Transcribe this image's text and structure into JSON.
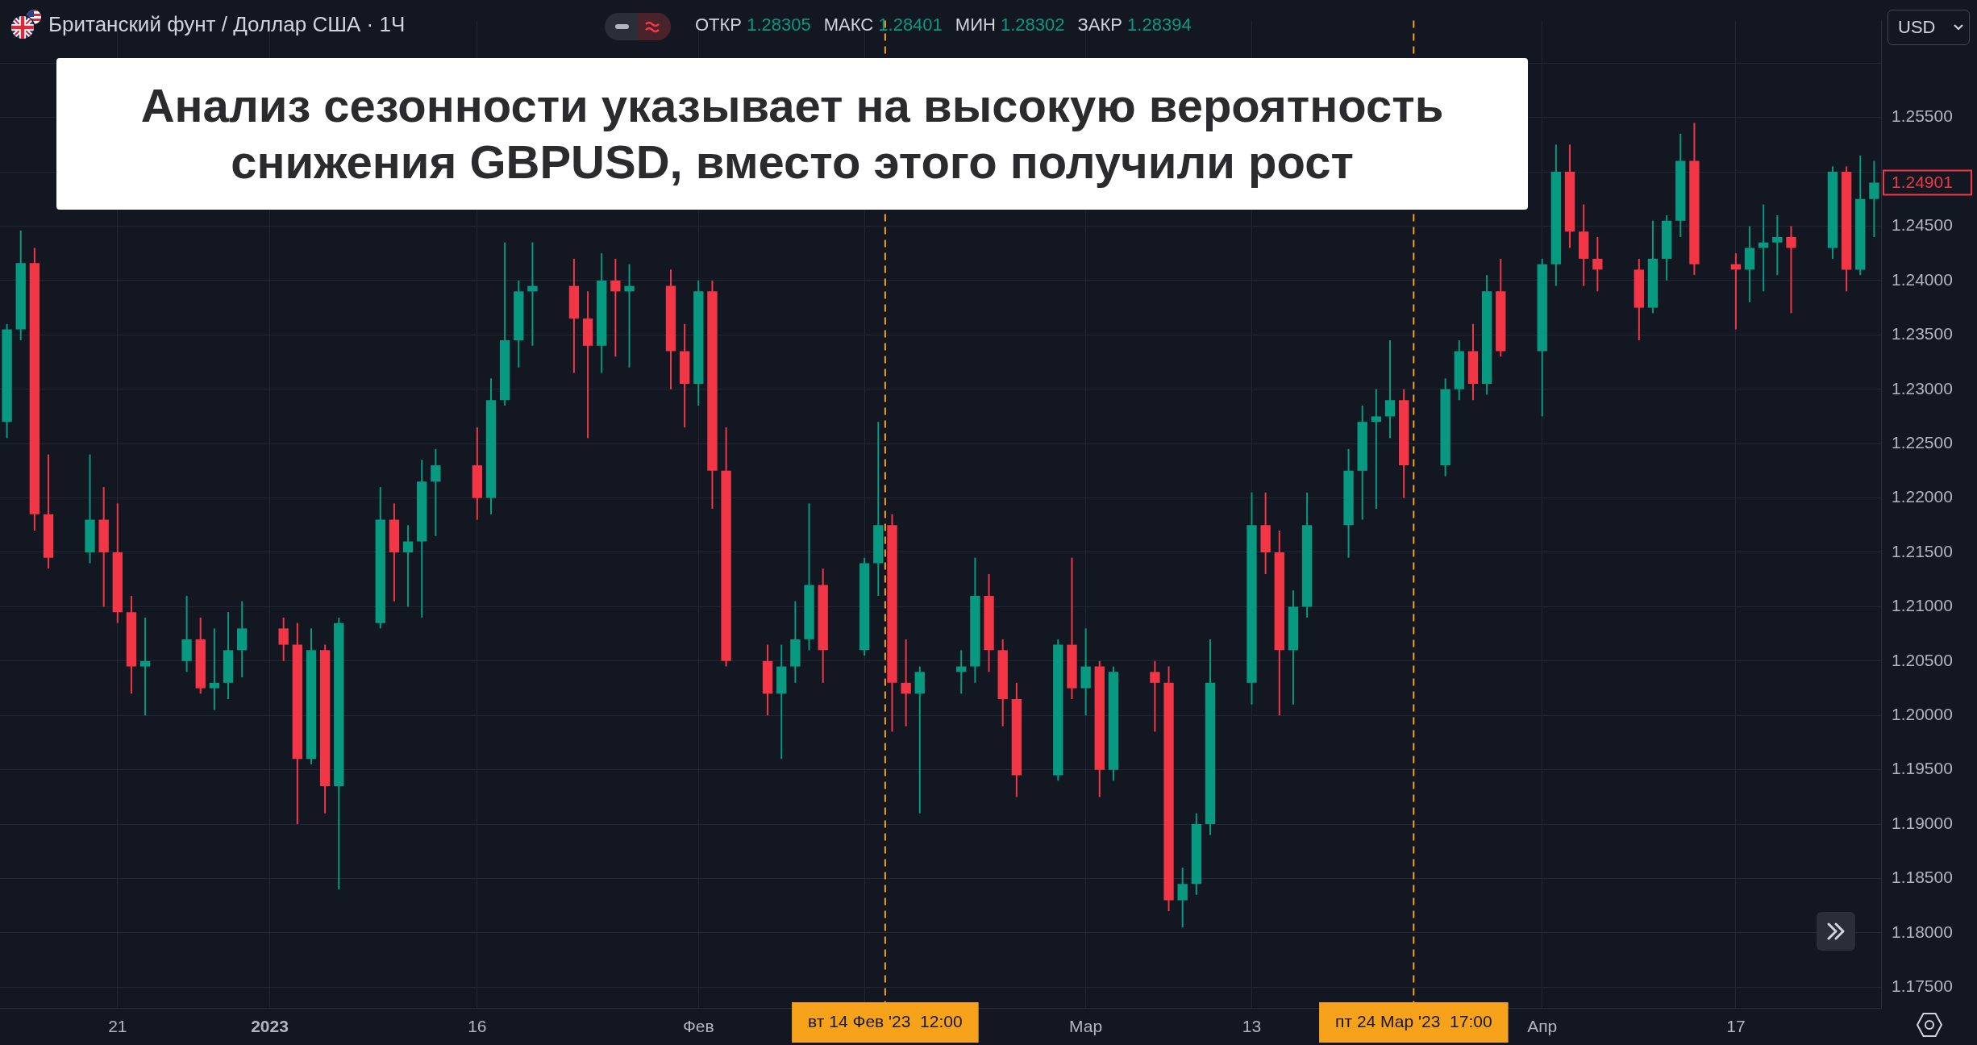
{
  "chart_data": {
    "type": "candlestick",
    "title": "Анализ сезонности указывает на высокую вероятность снижения GBPUSD, вместо этого получили рост",
    "subtitle": "Британский фунт / Доллар США · 1Ч",
    "x": [
      "2022-12-13",
      "2022-12-14",
      "2022-12-15",
      "2022-12-16",
      "2022-12-19",
      "2022-12-20",
      "2022-12-21",
      "2022-12-22",
      "2022-12-23",
      "2022-12-26",
      "2022-12-27",
      "2022-12-28",
      "2022-12-29",
      "2022-12-30",
      "2023-01-02",
      "2023-01-03",
      "2023-01-04",
      "2023-01-05",
      "2023-01-06",
      "2023-01-09",
      "2023-01-10",
      "2023-01-11",
      "2023-01-12",
      "2023-01-13",
      "2023-01-16",
      "2023-01-17",
      "2023-01-18",
      "2023-01-19",
      "2023-01-20",
      "2023-01-23",
      "2023-01-24",
      "2023-01-25",
      "2023-01-26",
      "2023-01-27",
      "2023-01-30",
      "2023-01-31",
      "2023-02-01",
      "2023-02-02",
      "2023-02-03",
      "2023-02-06",
      "2023-02-07",
      "2023-02-08",
      "2023-02-09",
      "2023-02-10",
      "2023-02-13",
      "2023-02-14",
      "2023-02-15",
      "2023-02-16",
      "2023-02-17",
      "2023-02-20",
      "2023-02-21",
      "2023-02-22",
      "2023-02-23",
      "2023-02-24",
      "2023-02-27",
      "2023-02-28",
      "2023-03-01",
      "2023-03-02",
      "2023-03-03",
      "2023-03-06",
      "2023-03-07",
      "2023-03-08",
      "2023-03-09",
      "2023-03-10",
      "2023-03-13",
      "2023-03-14",
      "2023-03-15",
      "2023-03-16",
      "2023-03-17",
      "2023-03-20",
      "2023-03-21",
      "2023-03-22",
      "2023-03-23",
      "2023-03-24",
      "2023-03-27",
      "2023-03-28",
      "2023-03-29",
      "2023-03-30",
      "2023-03-31",
      "2023-04-03",
      "2023-04-04",
      "2023-04-05",
      "2023-04-06",
      "2023-04-07",
      "2023-04-10",
      "2023-04-11",
      "2023-04-12",
      "2023-04-13",
      "2023-04-14",
      "2023-04-17",
      "2023-04-18",
      "2023-04-19",
      "2023-04-20",
      "2023-04-21",
      "2023-04-24",
      "2023-04-25",
      "2023-04-26",
      "2023-04-27"
    ],
    "ohlc": [
      [
        1.227,
        1.236,
        1.2255,
        1.2355
      ],
      [
        1.2355,
        1.2446,
        1.2345,
        1.2416
      ],
      [
        1.2416,
        1.243,
        1.217,
        1.2185
      ],
      [
        1.2185,
        1.224,
        1.2135,
        1.2145
      ],
      [
        1.215,
        1.224,
        1.214,
        1.218
      ],
      [
        1.218,
        1.221,
        1.21,
        1.215
      ],
      [
        1.215,
        1.2195,
        1.2085,
        1.2095
      ],
      [
        1.2095,
        1.211,
        1.202,
        1.2045
      ],
      [
        1.2045,
        1.209,
        1.2,
        1.205
      ],
      [
        1.205,
        1.211,
        1.204,
        1.207
      ],
      [
        1.207,
        1.209,
        1.202,
        1.2025
      ],
      [
        1.2025,
        1.208,
        1.2005,
        1.203
      ],
      [
        1.203,
        1.2095,
        1.2015,
        1.206
      ],
      [
        1.206,
        1.2105,
        1.2035,
        1.208
      ],
      [
        1.208,
        1.209,
        1.205,
        1.2065
      ],
      [
        1.2065,
        1.2085,
        1.19,
        1.196
      ],
      [
        1.196,
        1.208,
        1.1955,
        1.206
      ],
      [
        1.206,
        1.2065,
        1.191,
        1.1935
      ],
      [
        1.1935,
        1.209,
        1.184,
        1.2085
      ],
      [
        1.2085,
        1.221,
        1.208,
        1.218
      ],
      [
        1.218,
        1.2195,
        1.2105,
        1.215
      ],
      [
        1.215,
        1.2175,
        1.21,
        1.216
      ],
      [
        1.216,
        1.2235,
        1.209,
        1.2215
      ],
      [
        1.2215,
        1.2245,
        1.2165,
        1.223
      ],
      [
        1.223,
        1.2265,
        1.218,
        1.22
      ],
      [
        1.22,
        1.231,
        1.2185,
        1.229
      ],
      [
        1.229,
        1.2435,
        1.2285,
        1.2345
      ],
      [
        1.2345,
        1.24,
        1.232,
        1.239
      ],
      [
        1.239,
        1.2435,
        1.234,
        1.2395
      ],
      [
        1.2395,
        1.242,
        1.2315,
        1.2365
      ],
      [
        1.2365,
        1.239,
        1.2255,
        1.234
      ],
      [
        1.234,
        1.2425,
        1.2315,
        1.24
      ],
      [
        1.24,
        1.242,
        1.233,
        1.239
      ],
      [
        1.239,
        1.2415,
        1.232,
        1.2395
      ],
      [
        1.2395,
        1.241,
        1.23,
        1.2335
      ],
      [
        1.2335,
        1.236,
        1.2265,
        1.2305
      ],
      [
        1.2305,
        1.24,
        1.2285,
        1.239
      ],
      [
        1.239,
        1.24,
        1.219,
        1.2225
      ],
      [
        1.2225,
        1.2265,
        1.2045,
        1.205
      ],
      [
        1.205,
        1.2065,
        1.2,
        1.202
      ],
      [
        1.202,
        1.2065,
        1.196,
        1.2045
      ],
      [
        1.2045,
        1.2105,
        1.203,
        1.207
      ],
      [
        1.207,
        1.2195,
        1.206,
        1.212
      ],
      [
        1.212,
        1.2135,
        1.203,
        1.206
      ],
      [
        1.206,
        1.2145,
        1.2055,
        1.214
      ],
      [
        1.214,
        1.227,
        1.211,
        1.2175
      ],
      [
        1.2175,
        1.2185,
        1.1985,
        1.203
      ],
      [
        1.203,
        1.207,
        1.199,
        1.202
      ],
      [
        1.202,
        1.2045,
        1.191,
        1.204
      ],
      [
        1.204,
        1.206,
        1.202,
        1.2045
      ],
      [
        1.2045,
        1.2145,
        1.203,
        1.211
      ],
      [
        1.211,
        1.213,
        1.204,
        1.206
      ],
      [
        1.206,
        1.207,
        1.199,
        1.2015
      ],
      [
        1.2015,
        1.203,
        1.1925,
        1.1945
      ],
      [
        1.1945,
        1.207,
        1.194,
        1.2065
      ],
      [
        1.2065,
        1.2145,
        1.2015,
        1.2025
      ],
      [
        1.2025,
        1.208,
        1.2,
        1.2045
      ],
      [
        1.2045,
        1.205,
        1.1925,
        1.195
      ],
      [
        1.195,
        1.2045,
        1.194,
        1.204
      ],
      [
        1.204,
        1.205,
        1.1985,
        1.203
      ],
      [
        1.203,
        1.2045,
        1.182,
        1.183
      ],
      [
        1.183,
        1.186,
        1.1805,
        1.1845
      ],
      [
        1.1845,
        1.191,
        1.1835,
        1.19
      ],
      [
        1.19,
        1.207,
        1.189,
        1.203
      ],
      [
        1.203,
        1.2205,
        1.201,
        1.2175
      ],
      [
        1.2175,
        1.2205,
        1.213,
        1.215
      ],
      [
        1.215,
        1.217,
        1.2,
        1.206
      ],
      [
        1.206,
        1.2115,
        1.201,
        1.21
      ],
      [
        1.21,
        1.2205,
        1.209,
        1.2175
      ],
      [
        1.2175,
        1.2245,
        1.2145,
        1.2225
      ],
      [
        1.2225,
        1.2285,
        1.218,
        1.227
      ],
      [
        1.227,
        1.23,
        1.219,
        1.2275
      ],
      [
        1.2275,
        1.2345,
        1.2255,
        1.229
      ],
      [
        1.229,
        1.23,
        1.22,
        1.223
      ],
      [
        1.223,
        1.231,
        1.222,
        1.23
      ],
      [
        1.23,
        1.2345,
        1.229,
        1.2335
      ],
      [
        1.2335,
        1.236,
        1.229,
        1.2305
      ],
      [
        1.2305,
        1.2405,
        1.2295,
        1.239
      ],
      [
        1.239,
        1.242,
        1.233,
        1.2335
      ],
      [
        1.2335,
        1.242,
        1.2275,
        1.2415
      ],
      [
        1.2415,
        1.2525,
        1.2395,
        1.25
      ],
      [
        1.25,
        1.2525,
        1.243,
        1.2445
      ],
      [
        1.2445,
        1.247,
        1.2395,
        1.242
      ],
      [
        1.242,
        1.244,
        1.239,
        1.241
      ],
      [
        1.241,
        1.242,
        1.2345,
        1.2375
      ],
      [
        1.2375,
        1.2455,
        1.237,
        1.242
      ],
      [
        1.242,
        1.246,
        1.24,
        1.2455
      ],
      [
        1.2455,
        1.2535,
        1.244,
        1.251
      ],
      [
        1.251,
        1.2545,
        1.2405,
        1.2415
      ],
      [
        1.2415,
        1.2425,
        1.2355,
        1.241
      ],
      [
        1.241,
        1.245,
        1.238,
        1.243
      ],
      [
        1.243,
        1.247,
        1.239,
        1.2435
      ],
      [
        1.2435,
        1.246,
        1.2405,
        1.244
      ],
      [
        1.244,
        1.245,
        1.237,
        1.243
      ],
      [
        1.243,
        1.2505,
        1.242,
        1.25
      ],
      [
        1.25,
        1.2505,
        1.239,
        1.241
      ],
      [
        1.241,
        1.2515,
        1.2405,
        1.2475
      ],
      [
        1.2475,
        1.251,
        1.244,
        1.24901
      ]
    ],
    "colors": [
      "#089981",
      "#089981",
      "#f23645",
      "#f23645",
      "#089981",
      "#f23645",
      "#f23645",
      "#f23645",
      "#089981",
      "#089981",
      "#f23645",
      "#089981",
      "#089981",
      "#089981",
      "#f23645",
      "#f23645",
      "#089981",
      "#f23645",
      "#089981",
      "#089981",
      "#f23645",
      "#089981",
      "#089981",
      "#089981",
      "#f23645",
      "#089981",
      "#089981",
      "#089981",
      "#089981",
      "#f23645",
      "#f23645",
      "#089981",
      "#f23645",
      "#089981",
      "#f23645",
      "#f23645",
      "#089981",
      "#f23645",
      "#f23645",
      "#f23645",
      "#089981",
      "#089981",
      "#089981",
      "#f23645",
      "#089981",
      "#089981",
      "#f23645",
      "#f23645",
      "#089981",
      "#089981",
      "#089981",
      "#f23645",
      "#f23645",
      "#f23645",
      "#089981",
      "#f23645",
      "#089981",
      "#f23645",
      "#089981",
      "#f23645",
      "#f23645",
      "#089981",
      "#089981",
      "#089981",
      "#089981",
      "#f23645",
      "#f23645",
      "#089981",
      "#089981",
      "#089981",
      "#089981",
      "#089981",
      "#089981",
      "#f23645",
      "#089981",
      "#089981",
      "#f23645",
      "#089981",
      "#f23645",
      "#089981",
      "#089981",
      "#f23645",
      "#f23645",
      "#f23645",
      "#f23645",
      "#089981",
      "#089981",
      "#089981",
      "#f23645",
      "#f23645",
      "#089981",
      "#089981",
      "#089981",
      "#f23645",
      "#089981",
      "#f23645",
      "#089981",
      "#089981"
    ],
    "xlim": [
      "2022-12-12T12:00",
      "2023-04-27T12:00"
    ],
    "xticks": [
      {
        "value": "2022-12-21",
        "label": "21"
      },
      {
        "value": "2023-01-01",
        "label": "2023"
      },
      {
        "value": "2023-01-16",
        "label": "16"
      },
      {
        "value": "2023-02-01",
        "label": "Фев"
      },
      {
        "value": "2023-02-13",
        "label": null
      },
      {
        "value": "2023-03-01",
        "label": "Мар"
      },
      {
        "value": "2023-03-13",
        "label": "13"
      },
      {
        "value": "2023-04-03",
        "label": "Апр"
      },
      {
        "value": "2023-04-17",
        "label": "17"
      }
    ],
    "ylim": [
      1.1731,
      1.2639
    ],
    "yticks": [
      {
        "value": 1.175,
        "label": "1.17500"
      },
      {
        "value": 1.18,
        "label": "1.18000"
      },
      {
        "value": 1.185,
        "label": "1.18500"
      },
      {
        "value": 1.19,
        "label": "1.19000"
      },
      {
        "value": 1.195,
        "label": "1.19500"
      },
      {
        "value": 1.2,
        "label": "1.20000"
      },
      {
        "value": 1.205,
        "label": "1.20500"
      },
      {
        "value": 1.21,
        "label": "1.21000"
      },
      {
        "value": 1.215,
        "label": "1.21500"
      },
      {
        "value": 1.22,
        "label": "1.22000"
      },
      {
        "value": 1.225,
        "label": "1.22500"
      },
      {
        "value": 1.23,
        "label": "1.23000"
      },
      {
        "value": 1.235,
        "label": "1.23500"
      },
      {
        "value": 1.24,
        "label": "1.24000"
      },
      {
        "value": 1.245,
        "label": "1.24500"
      },
      {
        "value": 1.25,
        "label": null
      },
      {
        "value": 1.255,
        "label": "1.25500"
      },
      {
        "value": 1.26,
        "label": null
      }
    ],
    "grid": true,
    "ref_lines": [
      {
        "axis": "x",
        "value": "2023-02-14T12:00",
        "label": "вт 14 Фев '23  12:00",
        "color": "#f7a21b",
        "line_style": "dashed"
      },
      {
        "axis": "x",
        "value": "2023-03-24T17:00",
        "label": "пт 24 Мар '23  17:00",
        "color": "#f7a21b",
        "line_style": "dashed"
      }
    ],
    "annotations": [
      "1.24901",
      "ОТКР 1.28305",
      "МАКС 1.28401",
      "МИН 1.28302",
      "ЗАКР 1.28394",
      "USD"
    ]
  }
}
